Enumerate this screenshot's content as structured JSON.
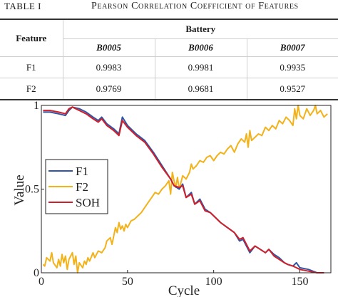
{
  "caption": {
    "label": "TABLE I",
    "title": "Pearson Correlation Coefficient of Features"
  },
  "table": {
    "feature_header": "Feature",
    "group_header": "Battery",
    "columns": [
      "B0005",
      "B0006",
      "B0007"
    ],
    "rows": [
      {
        "feature": "F1",
        "values": [
          "0.9983",
          "0.9981",
          "0.9935"
        ]
      },
      {
        "feature": "F2",
        "values": [
          "0.9769",
          "0.9681",
          "0.9527"
        ]
      }
    ]
  },
  "chart_data": {
    "type": "line",
    "xlabel": "Cycle",
    "ylabel": "Value",
    "xlim": [
      0,
      168
    ],
    "ylim": [
      0,
      1
    ],
    "xticks": [
      "0",
      "50",
      "100",
      "150"
    ],
    "yticks": [
      "0",
      "0.5",
      "1"
    ],
    "legend_position": "left-middle",
    "series": [
      {
        "name": "F1",
        "color": "#2f55a4",
        "points": [
          [
            1,
            0.96
          ],
          [
            5,
            0.96
          ],
          [
            10,
            0.95
          ],
          [
            14,
            0.94
          ],
          [
            16,
            0.97
          ],
          [
            18,
            0.99
          ],
          [
            22,
            0.98
          ],
          [
            26,
            0.96
          ],
          [
            30,
            0.93
          ],
          [
            33,
            0.91
          ],
          [
            35,
            0.93
          ],
          [
            38,
            0.89
          ],
          [
            42,
            0.86
          ],
          [
            45,
            0.83
          ],
          [
            47,
            0.93
          ],
          [
            50,
            0.88
          ],
          [
            55,
            0.83
          ],
          [
            60,
            0.79
          ],
          [
            65,
            0.72
          ],
          [
            70,
            0.64
          ],
          [
            75,
            0.56
          ],
          [
            77,
            0.52
          ],
          [
            80,
            0.5
          ],
          [
            82,
            0.53
          ],
          [
            84,
            0.45
          ],
          [
            87,
            0.48
          ],
          [
            89,
            0.41
          ],
          [
            92,
            0.44
          ],
          [
            95,
            0.38
          ],
          [
            98,
            0.36
          ],
          [
            100,
            0.34
          ],
          [
            104,
            0.3
          ],
          [
            108,
            0.27
          ],
          [
            112,
            0.24
          ],
          [
            115,
            0.19
          ],
          [
            117,
            0.2
          ],
          [
            119,
            0.16
          ],
          [
            121,
            0.12
          ],
          [
            124,
            0.16
          ],
          [
            127,
            0.14
          ],
          [
            130,
            0.12
          ],
          [
            132,
            0.14
          ],
          [
            135,
            0.11
          ],
          [
            138,
            0.09
          ],
          [
            141,
            0.06
          ],
          [
            143,
            0.05
          ],
          [
            146,
            0.04
          ],
          [
            148,
            0.06
          ],
          [
            150,
            0.03
          ],
          [
            155,
            0.02
          ],
          [
            160,
            0.0
          ],
          [
            164,
            0.0
          ]
        ]
      },
      {
        "name": "F2",
        "color": "#f2b21a",
        "points": [
          [
            1,
            0.05
          ],
          [
            2,
            0.04
          ],
          [
            3,
            0.09
          ],
          [
            5,
            0.07
          ],
          [
            6,
            0.12
          ],
          [
            7,
            0.06
          ],
          [
            9,
            0.03
          ],
          [
            10,
            0.08
          ],
          [
            11,
            0.04
          ],
          [
            12,
            0.11
          ],
          [
            13,
            0.06
          ],
          [
            14,
            0.1
          ],
          [
            15,
            0.02
          ],
          [
            16,
            0.08
          ],
          [
            18,
            0.12
          ],
          [
            19,
            0.05
          ],
          [
            20,
            0.1
          ],
          [
            21,
            0.0
          ],
          [
            22,
            0.06
          ],
          [
            24,
            0.03
          ],
          [
            25,
            0.07
          ],
          [
            26,
            0.05
          ],
          [
            27,
            0.09
          ],
          [
            28,
            0.07
          ],
          [
            30,
            0.12
          ],
          [
            31,
            0.09
          ],
          [
            32,
            0.11
          ],
          [
            33,
            0.13
          ],
          [
            35,
            0.12
          ],
          [
            37,
            0.15
          ],
          [
            38,
            0.19
          ],
          [
            40,
            0.21
          ],
          [
            41,
            0.17
          ],
          [
            42,
            0.22
          ],
          [
            43,
            0.27
          ],
          [
            44,
            0.24
          ],
          [
            45,
            0.3
          ],
          [
            46,
            0.26
          ],
          [
            47,
            0.28
          ],
          [
            48,
            0.25
          ],
          [
            49,
            0.29
          ],
          [
            50,
            0.27
          ],
          [
            52,
            0.31
          ],
          [
            54,
            0.32
          ],
          [
            56,
            0.34
          ],
          [
            58,
            0.36
          ],
          [
            60,
            0.39
          ],
          [
            62,
            0.42
          ],
          [
            64,
            0.45
          ],
          [
            66,
            0.48
          ],
          [
            68,
            0.47
          ],
          [
            70,
            0.5
          ],
          [
            72,
            0.52
          ],
          [
            74,
            0.55
          ],
          [
            75,
            0.47
          ],
          [
            76,
            0.6
          ],
          [
            77,
            0.55
          ],
          [
            78,
            0.51
          ],
          [
            79,
            0.57
          ],
          [
            80,
            0.5
          ],
          [
            81,
            0.54
          ],
          [
            82,
            0.58
          ],
          [
            84,
            0.56
          ],
          [
            86,
            0.6
          ],
          [
            87,
            0.65
          ],
          [
            88,
            0.62
          ],
          [
            90,
            0.64
          ],
          [
            92,
            0.67
          ],
          [
            94,
            0.66
          ],
          [
            96,
            0.69
          ],
          [
            98,
            0.7
          ],
          [
            100,
            0.67
          ],
          [
            102,
            0.7
          ],
          [
            104,
            0.72
          ],
          [
            106,
            0.71
          ],
          [
            108,
            0.74
          ],
          [
            110,
            0.76
          ],
          [
            112,
            0.72
          ],
          [
            114,
            0.77
          ],
          [
            116,
            0.8
          ],
          [
            118,
            0.78
          ],
          [
            119,
            0.83
          ],
          [
            120,
            0.75
          ],
          [
            121,
            0.85
          ],
          [
            122,
            0.79
          ],
          [
            124,
            0.81
          ],
          [
            126,
            0.83
          ],
          [
            128,
            0.82
          ],
          [
            130,
            0.87
          ],
          [
            132,
            0.85
          ],
          [
            134,
            0.88
          ],
          [
            136,
            0.86
          ],
          [
            138,
            0.91
          ],
          [
            140,
            0.89
          ],
          [
            142,
            0.93
          ],
          [
            144,
            0.91
          ],
          [
            146,
            0.88
          ],
          [
            147,
            0.98
          ],
          [
            148,
            0.92
          ],
          [
            149,
            1.0
          ],
          [
            150,
            0.94
          ],
          [
            152,
            0.92
          ],
          [
            154,
            0.98
          ],
          [
            156,
            0.94
          ],
          [
            158,
            0.97
          ],
          [
            159,
            1.0
          ],
          [
            160,
            0.95
          ],
          [
            162,
            0.97
          ],
          [
            164,
            0.93
          ],
          [
            166,
            0.95
          ]
        ]
      },
      {
        "name": "SOH",
        "color": "#d11f2a",
        "points": [
          [
            1,
            0.97
          ],
          [
            5,
            0.97
          ],
          [
            10,
            0.96
          ],
          [
            14,
            0.95
          ],
          [
            16,
            0.98
          ],
          [
            18,
            0.99
          ],
          [
            20,
            0.98
          ],
          [
            22,
            0.97
          ],
          [
            26,
            0.95
          ],
          [
            30,
            0.92
          ],
          [
            33,
            0.9
          ],
          [
            35,
            0.92
          ],
          [
            38,
            0.88
          ],
          [
            42,
            0.85
          ],
          [
            45,
            0.82
          ],
          [
            47,
            0.91
          ],
          [
            50,
            0.87
          ],
          [
            55,
            0.82
          ],
          [
            60,
            0.78
          ],
          [
            65,
            0.71
          ],
          [
            70,
            0.63
          ],
          [
            75,
            0.56
          ],
          [
            77,
            0.52
          ],
          [
            80,
            0.51
          ],
          [
            82,
            0.52
          ],
          [
            84,
            0.45
          ],
          [
            87,
            0.47
          ],
          [
            89,
            0.41
          ],
          [
            92,
            0.43
          ],
          [
            95,
            0.37
          ],
          [
            98,
            0.36
          ],
          [
            100,
            0.34
          ],
          [
            104,
            0.3
          ],
          [
            108,
            0.27
          ],
          [
            112,
            0.24
          ],
          [
            115,
            0.2
          ],
          [
            117,
            0.21
          ],
          [
            119,
            0.17
          ],
          [
            121,
            0.13
          ],
          [
            124,
            0.16
          ],
          [
            127,
            0.14
          ],
          [
            130,
            0.12
          ],
          [
            132,
            0.14
          ],
          [
            135,
            0.1
          ],
          [
            138,
            0.08
          ],
          [
            141,
            0.06
          ],
          [
            143,
            0.05
          ],
          [
            146,
            0.04
          ],
          [
            148,
            0.03
          ],
          [
            150,
            0.02
          ],
          [
            155,
            0.01
          ],
          [
            160,
            0.0
          ],
          [
            164,
            0.0
          ]
        ]
      }
    ]
  }
}
